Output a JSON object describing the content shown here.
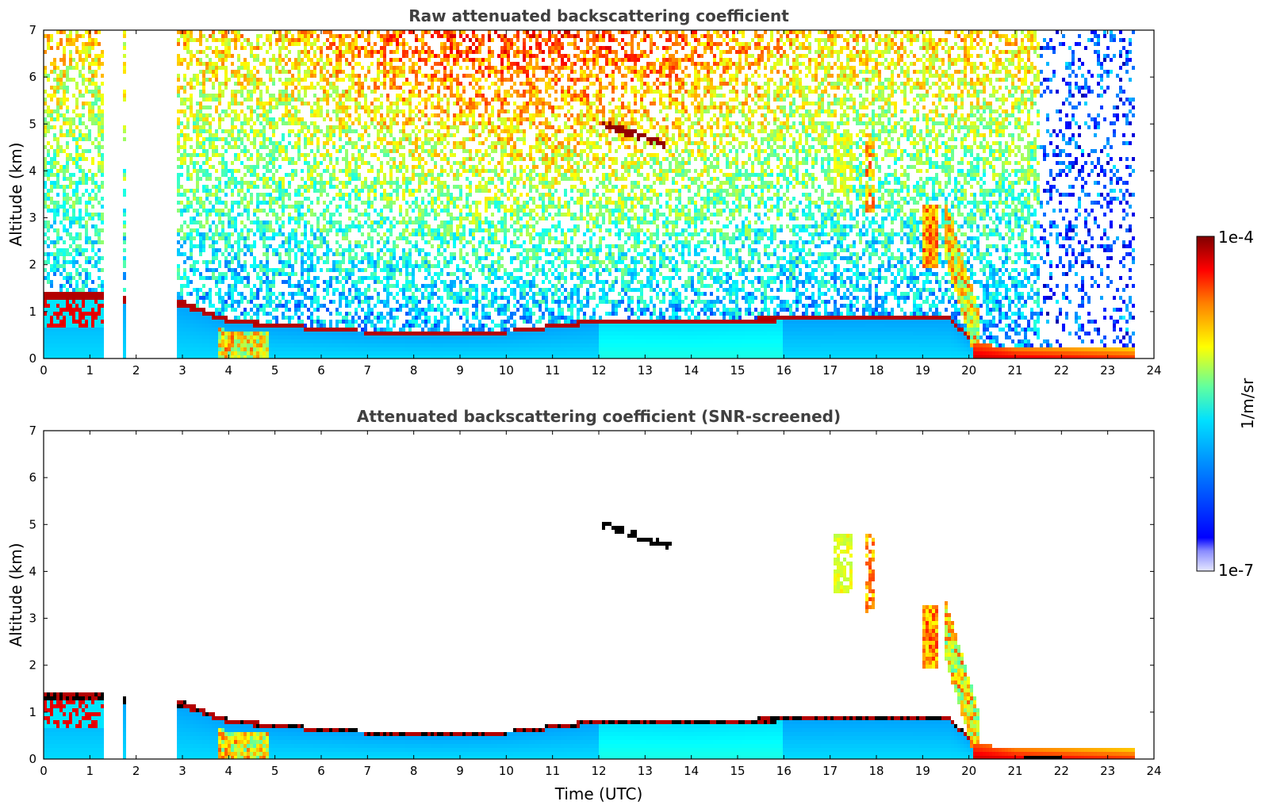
{
  "chart_data": [
    {
      "type": "heatmap",
      "title": "Raw attenuated backscattering coefficient",
      "xlabel": "",
      "ylabel": "Altitude (km)",
      "xlim": [
        0,
        24
      ],
      "ylim": [
        0,
        7
      ],
      "xticks": [
        0,
        1,
        2,
        3,
        4,
        5,
        6,
        7,
        8,
        9,
        10,
        11,
        12,
        13,
        14,
        15,
        16,
        17,
        18,
        19,
        20,
        21,
        22,
        23,
        24
      ],
      "yticks": [
        0,
        1,
        2,
        3,
        4,
        5,
        6,
        7
      ],
      "screened": false,
      "gaps_utc": [
        [
          1.3,
          1.72
        ],
        [
          1.8,
          2.85
        ]
      ],
      "boundary_layer_top_km": [
        [
          0,
          1.4
        ],
        [
          1.3,
          1.4
        ],
        [
          2.85,
          1.3
        ],
        [
          4,
          0.85
        ],
        [
          5,
          0.75
        ],
        [
          7,
          0.6
        ],
        [
          8.5,
          0.55
        ],
        [
          10,
          0.6
        ],
        [
          12,
          0.85
        ],
        [
          14,
          0.8
        ],
        [
          16,
          0.9
        ],
        [
          18,
          0.92
        ],
        [
          19.6,
          0.9
        ],
        [
          20.1,
          0.35
        ],
        [
          21,
          0.2
        ],
        [
          23.6,
          0.2
        ]
      ],
      "features": [
        {
          "name": "cirrus streak",
          "time_utc": [
            12.1,
            13.6
          ],
          "alt_km": [
            5.0,
            4.5
          ]
        },
        {
          "name": "virga",
          "time_utc": [
            17.0,
            18.0
          ],
          "alt_km": [
            3.5,
            5.0
          ]
        },
        {
          "name": "descending cloud",
          "time_utc": [
            19.0,
            21.0
          ],
          "alt_km": [
            0.2,
            3.3
          ]
        }
      ]
    },
    {
      "type": "heatmap",
      "title": "Attenuated backscattering coefficient (SNR-screened)",
      "xlabel": "Time (UTC)",
      "ylabel": "Altitude (km)",
      "xlim": [
        0,
        24
      ],
      "ylim": [
        0,
        7
      ],
      "xticks": [
        0,
        1,
        2,
        3,
        4,
        5,
        6,
        7,
        8,
        9,
        10,
        11,
        12,
        13,
        14,
        15,
        16,
        17,
        18,
        19,
        20,
        21,
        22,
        23,
        24
      ],
      "yticks": [
        0,
        1,
        2,
        3,
        4,
        5,
        6,
        7
      ],
      "screened": true
    }
  ],
  "colorbar": {
    "label": "1/m/sr",
    "max_label": "1e-4",
    "min_label": "1e-7",
    "colormap": "jet"
  }
}
